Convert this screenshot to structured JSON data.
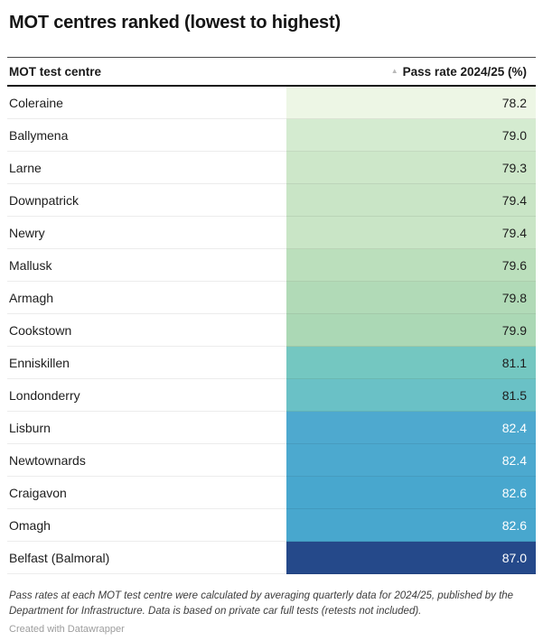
{
  "title": "MOT centres ranked (lowest to highest)",
  "table": {
    "col1_header": "MOT test centre",
    "col2_header": "Pass rate 2024/25 (%)",
    "sort_icon": "▲",
    "rows": [
      {
        "name": "Coleraine",
        "value": "78.2",
        "color": "#edf6e5",
        "text_color": "#1d1d1d"
      },
      {
        "name": "Ballymena",
        "value": "79.0",
        "color": "#d4ebd0",
        "text_color": "#1d1d1d"
      },
      {
        "name": "Larne",
        "value": "79.3",
        "color": "#cde7c9",
        "text_color": "#1d1d1d"
      },
      {
        "name": "Downpatrick",
        "value": "79.4",
        "color": "#c9e5c6",
        "text_color": "#1d1d1d"
      },
      {
        "name": "Newry",
        "value": "79.4",
        "color": "#c9e5c6",
        "text_color": "#1d1d1d"
      },
      {
        "name": "Mallusk",
        "value": "79.6",
        "color": "#bbdfbc",
        "text_color": "#1d1d1d"
      },
      {
        "name": "Armagh",
        "value": "79.8",
        "color": "#b1dab7",
        "text_color": "#1d1d1d"
      },
      {
        "name": "Cookstown",
        "value": "79.9",
        "color": "#abd8b5",
        "text_color": "#1d1d1d"
      },
      {
        "name": "Enniskillen",
        "value": "81.1",
        "color": "#74c7c1",
        "text_color": "#1d1d1d"
      },
      {
        "name": "Londonderry",
        "value": "81.5",
        "color": "#6ac1c6",
        "text_color": "#1d1d1d"
      },
      {
        "name": "Lisburn",
        "value": "82.4",
        "color": "#4ea9cf",
        "text_color": "#ffffff"
      },
      {
        "name": "Newtownards",
        "value": "82.4",
        "color": "#4ca9cf",
        "text_color": "#ffffff"
      },
      {
        "name": "Craigavon",
        "value": "82.6",
        "color": "#48a7ce",
        "text_color": "#ffffff"
      },
      {
        "name": "Omagh",
        "value": "82.6",
        "color": "#48a7ce",
        "text_color": "#ffffff"
      },
      {
        "name": "Belfast (Balmoral)",
        "value": "87.0",
        "color": "#25498a",
        "text_color": "#ffffff"
      }
    ]
  },
  "footnote": "Pass rates at each MOT test centre were calculated by averaging quarterly data for 2024/25, published by the Department for Infrastructure. Data is based on private car full tests (retests not included).",
  "credit": "Created with Datawrapper",
  "chart_data": {
    "type": "table",
    "title": "MOT centres ranked (lowest to highest)",
    "columns": [
      "MOT test centre",
      "Pass rate 2024/25 (%)"
    ],
    "categories": [
      "Coleraine",
      "Ballymena",
      "Larne",
      "Downpatrick",
      "Newry",
      "Mallusk",
      "Armagh",
      "Cookstown",
      "Enniskillen",
      "Londonderry",
      "Lisburn",
      "Newtownards",
      "Craigavon",
      "Omagh",
      "Belfast (Balmoral)"
    ],
    "values": [
      78.2,
      79.0,
      79.3,
      79.4,
      79.4,
      79.6,
      79.8,
      79.9,
      81.1,
      81.5,
      82.4,
      82.4,
      82.6,
      82.6,
      87.0
    ],
    "sort_order": "ascending",
    "value_color_scale": "green-to-blue heatmap on value cells",
    "annotations": "Pass rates at each MOT test centre were calculated by averaging quarterly data for 2024/25, published by the Department for Infrastructure. Data is based on private car full tests (retests not included)."
  }
}
